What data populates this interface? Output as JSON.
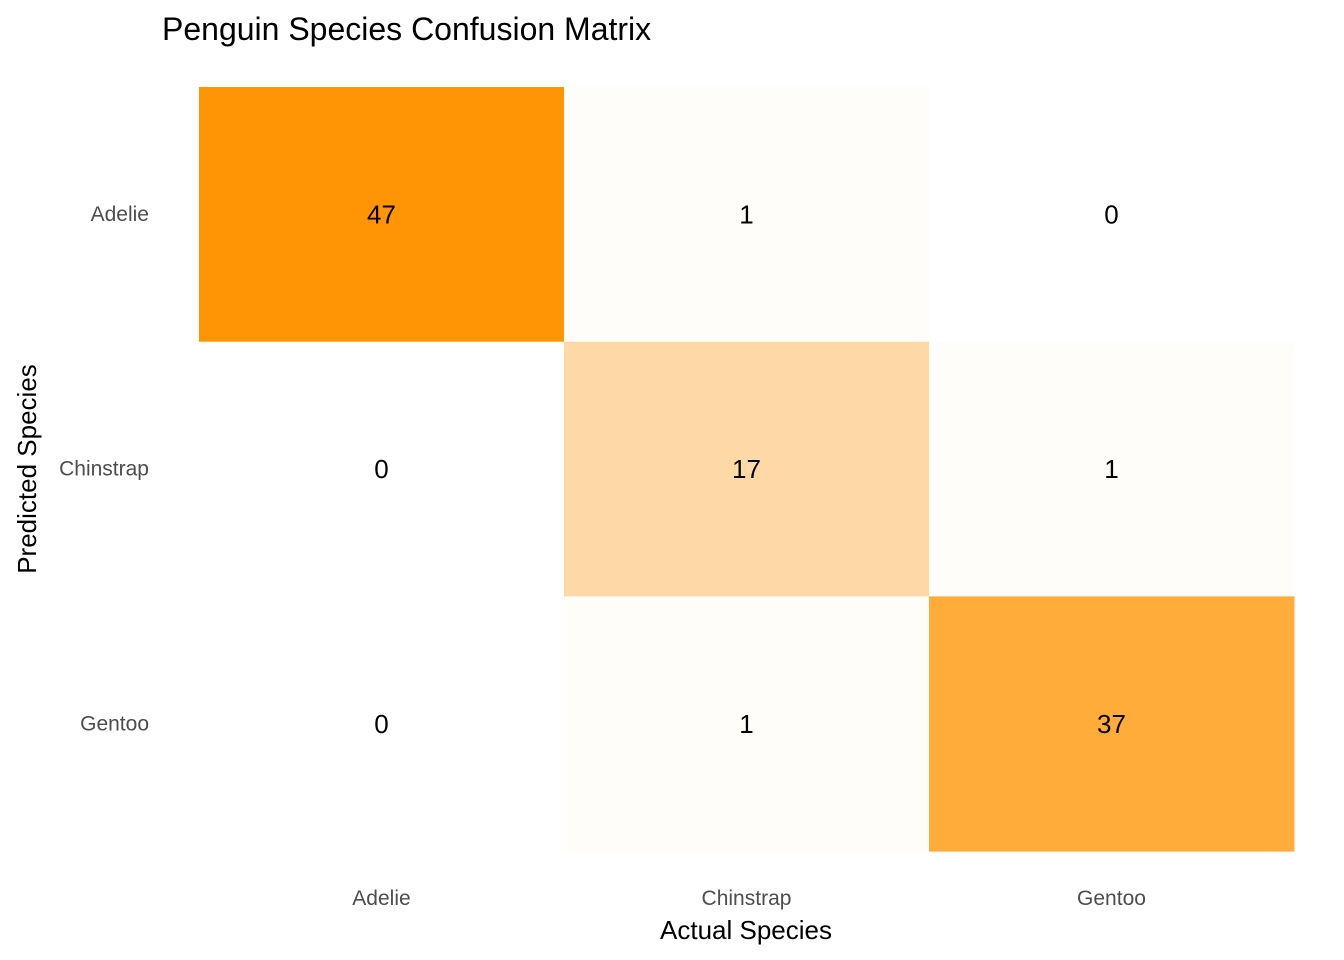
{
  "chart_data": {
    "type": "heatmap",
    "title": "Penguin Species Confusion Matrix",
    "xlabel": "Actual Species",
    "ylabel": "Predicted Species",
    "x_categories": [
      "Adelie",
      "Chinstrap",
      "Gentoo"
    ],
    "y_categories": [
      "Adelie",
      "Chinstrap",
      "Gentoo"
    ],
    "values": [
      [
        47,
        1,
        0
      ],
      [
        0,
        17,
        1
      ],
      [
        0,
        1,
        37
      ]
    ],
    "color_low": "#ffffff",
    "color_high": "#ff9505",
    "legend": "none",
    "grid": false
  }
}
